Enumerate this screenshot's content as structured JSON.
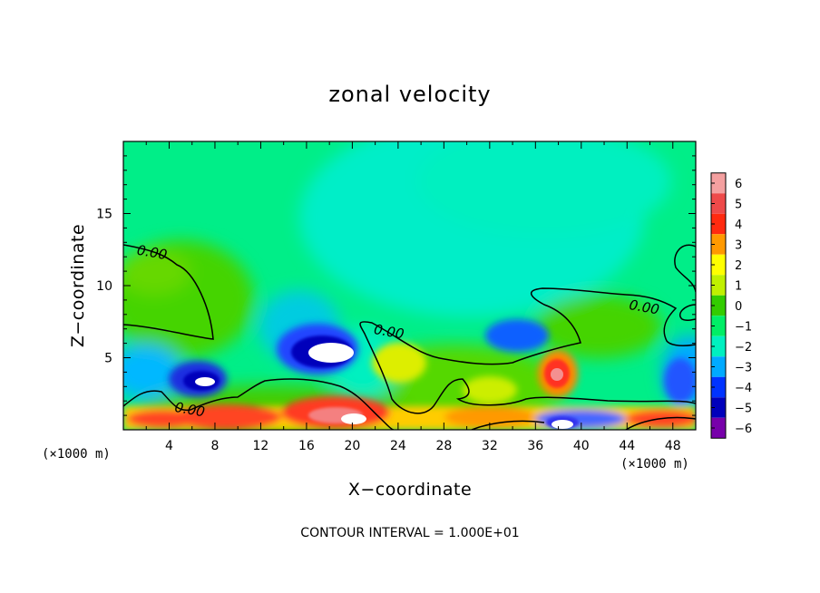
{
  "chart_data": {
    "type": "heatmap",
    "title": "zonal velocity",
    "xlabel": "X−coordinate",
    "ylabel": "Z−coordinate",
    "x_unit_left": "(×1000 m)",
    "x_unit_right": "(×1000 m)",
    "xlim": [
      0,
      50
    ],
    "ylim": [
      0,
      20
    ],
    "x_ticks": [
      "4",
      "8",
      "12",
      "16",
      "20",
      "24",
      "28",
      "32",
      "36",
      "40",
      "44",
      "48"
    ],
    "y_ticks": [
      "5",
      "10",
      "15"
    ],
    "colorbar": {
      "levels": [
        "6",
        "5",
        "4",
        "3",
        "2",
        "1",
        "0",
        "−1",
        "−2",
        "−3",
        "−4",
        "−5",
        "−6"
      ],
      "colors": [
        "#f4a0a0",
        "#ee4a4a",
        "#ff2a10",
        "#ff9900",
        "#ffff00",
        "#c0f000",
        "#33cc00",
        "#00ee66",
        "#00f0c0",
        "#00aaff",
        "#0033ff",
        "#0000bb",
        "#7700aa"
      ]
    },
    "contour_labels": [
      {
        "text": "0.00",
        "x": 2.5,
        "z": 12.3
      },
      {
        "text": "0.00",
        "x": 45.5,
        "z": 8.5
      },
      {
        "text": "0.00",
        "x": 23.2,
        "z": 6.8
      },
      {
        "text": "0.00",
        "x": 5.8,
        "z": 1.4
      }
    ],
    "footnote": "CONTOUR INTERVAL = 1.000E+01",
    "grid": false
  }
}
